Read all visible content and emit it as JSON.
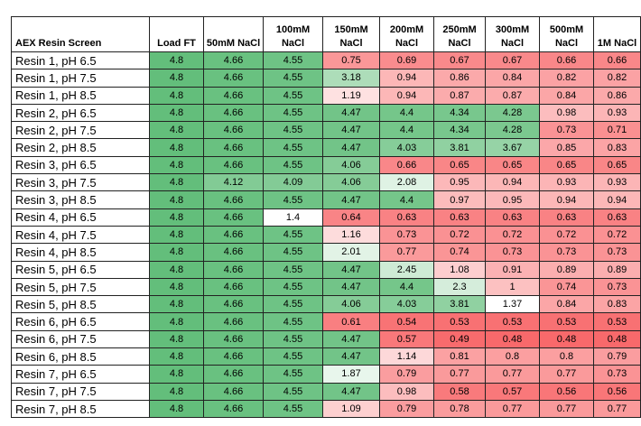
{
  "table": {
    "color_scale": [
      "#f8696b",
      "#ffffff",
      "#63be7b"
    ],
    "header": [
      "AEX Resin Screen",
      "Load FT",
      "50mM NaCl",
      "100mM NaCl",
      "150mM NaCl",
      "200mM NaCl",
      "250mM NaCl",
      "300mM NaCl",
      "500mM NaCl",
      "1M NaCl"
    ],
    "rows": [
      {
        "label": "Resin 1, pH 6.5",
        "values": [
          4.8,
          4.66,
          4.55,
          0.75,
          0.69,
          0.67,
          0.67,
          0.66,
          0.66
        ]
      },
      {
        "label": "Resin 1, pH 7.5",
        "values": [
          4.8,
          4.66,
          4.55,
          3.18,
          0.94,
          0.86,
          0.84,
          0.82,
          0.82
        ]
      },
      {
        "label": "Resin 1, pH 8.5",
        "values": [
          4.8,
          4.66,
          4.55,
          1.19,
          0.94,
          0.87,
          0.87,
          0.84,
          0.86
        ]
      },
      {
        "label": "Resin 2, pH 6.5",
        "values": [
          4.8,
          4.66,
          4.55,
          4.47,
          4.4,
          4.34,
          4.28,
          0.98,
          0.93
        ]
      },
      {
        "label": "Resin 2, pH 7.5",
        "values": [
          4.8,
          4.66,
          4.55,
          4.47,
          4.4,
          4.34,
          4.28,
          0.73,
          0.71
        ]
      },
      {
        "label": "Resin 2, pH 8.5",
        "values": [
          4.8,
          4.66,
          4.55,
          4.47,
          4.03,
          3.81,
          3.67,
          0.85,
          0.83
        ]
      },
      {
        "label": "Resin 3, pH 6.5",
        "values": [
          4.8,
          4.66,
          4.55,
          4.06,
          0.66,
          0.65,
          0.65,
          0.65,
          0.65
        ]
      },
      {
        "label": "Resin 3, pH 7.5",
        "values": [
          4.8,
          4.12,
          4.09,
          4.06,
          2.08,
          0.95,
          0.94,
          0.93,
          0.93
        ]
      },
      {
        "label": "Resin 3, pH 8.5",
        "values": [
          4.8,
          4.66,
          4.55,
          4.47,
          4.4,
          0.97,
          0.95,
          0.94,
          0.94
        ]
      },
      {
        "label": "Resin 4, pH 6.5",
        "values": [
          4.8,
          4.66,
          1.4,
          0.64,
          0.63,
          0.63,
          0.63,
          0.63,
          0.63
        ]
      },
      {
        "label": "Resin 4, pH 7.5",
        "values": [
          4.8,
          4.66,
          4.55,
          1.16,
          0.73,
          0.72,
          0.72,
          0.72,
          0.72
        ]
      },
      {
        "label": "Resin 4, pH 8.5",
        "values": [
          4.8,
          4.66,
          4.55,
          2.01,
          0.77,
          0.74,
          0.73,
          0.73,
          0.73
        ]
      },
      {
        "label": "Resin 5, pH 6.5",
        "values": [
          4.8,
          4.66,
          4.55,
          4.47,
          2.45,
          1.08,
          0.91,
          0.89,
          0.89
        ]
      },
      {
        "label": "Resin 5, pH 7.5",
        "values": [
          4.8,
          4.66,
          4.55,
          4.47,
          4.4,
          2.3,
          1,
          0.74,
          0.73
        ]
      },
      {
        "label": "Resin 5, pH 8.5",
        "values": [
          4.8,
          4.66,
          4.55,
          4.06,
          4.03,
          3.81,
          1.37,
          0.84,
          0.83
        ]
      },
      {
        "label": "Resin 6, pH 6.5",
        "values": [
          4.8,
          4.66,
          4.55,
          0.61,
          0.54,
          0.53,
          0.53,
          0.53,
          0.53
        ]
      },
      {
        "label": "Resin 6, pH 7.5",
        "values": [
          4.8,
          4.66,
          4.55,
          4.47,
          0.57,
          0.49,
          0.48,
          0.48,
          0.48
        ]
      },
      {
        "label": "Resin 6, pH 8.5",
        "values": [
          4.8,
          4.66,
          4.55,
          4.47,
          1.14,
          0.81,
          0.8,
          0.8,
          0.79
        ]
      },
      {
        "label": "Resin 7, pH 6.5",
        "values": [
          4.8,
          4.66,
          4.55,
          1.87,
          0.79,
          0.77,
          0.77,
          0.77,
          0.73
        ]
      },
      {
        "label": "Resin 7, pH 7.5",
        "values": [
          4.8,
          4.66,
          4.55,
          4.47,
          0.98,
          0.58,
          0.57,
          0.56,
          0.56
        ]
      },
      {
        "label": "Resin 7, pH 8.5",
        "values": [
          4.8,
          4.66,
          4.55,
          1.09,
          0.79,
          0.78,
          0.77,
          0.77,
          0.77
        ]
      }
    ]
  }
}
